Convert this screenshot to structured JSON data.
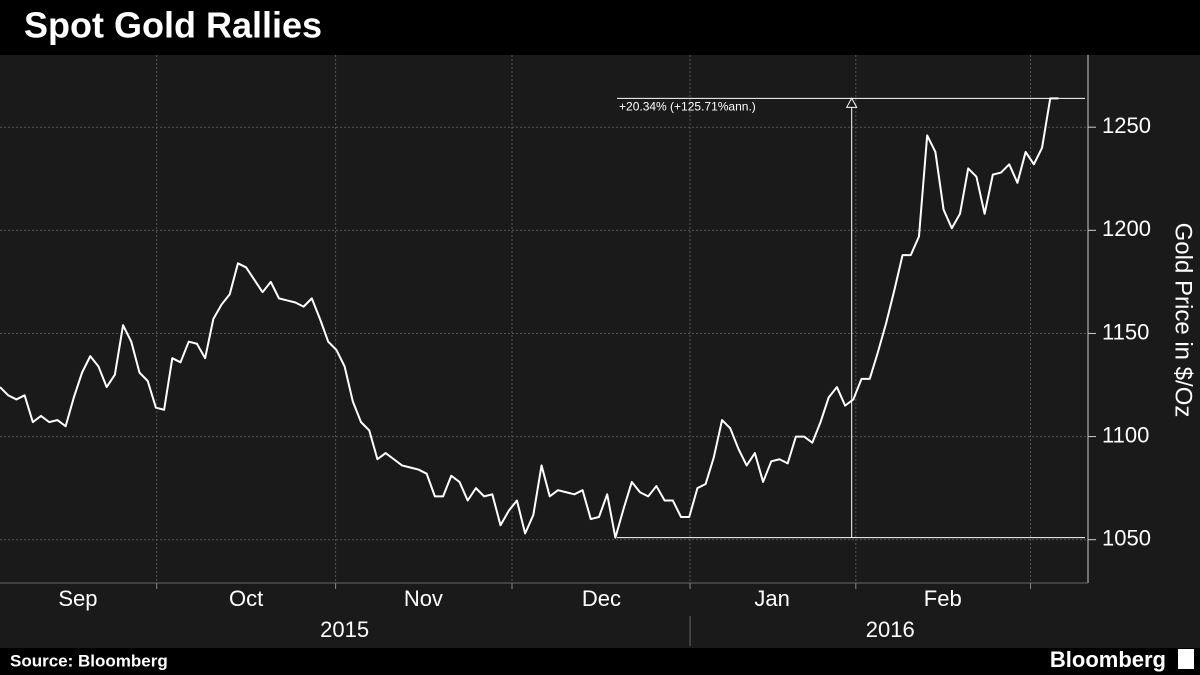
{
  "chart_data": {
    "type": "line",
    "title": "Spot Gold Rallies",
    "source": "Source: Bloomberg",
    "brand": "Bloomberg",
    "y_label": "Gold Price in $/Oz",
    "series": [
      {
        "name": "Spot Gold",
        "color": "#ffffff",
        "values": [
          1124,
          1120,
          1118,
          1120,
          1107,
          1110,
          1107,
          1108,
          1105,
          1119,
          1131,
          1139,
          1134,
          1124,
          1130,
          1154,
          1146,
          1131,
          1127,
          1114,
          1113,
          1138,
          1136,
          1146,
          1145,
          1138,
          1157,
          1164,
          1169,
          1184,
          1182,
          1176,
          1170,
          1175,
          1167,
          1166,
          1165,
          1163,
          1167,
          1157,
          1146,
          1142,
          1134,
          1117,
          1107,
          1103,
          1089,
          1092,
          1089,
          1086,
          1085,
          1084,
          1082,
          1071,
          1071,
          1081,
          1078,
          1069,
          1075,
          1071,
          1072,
          1057,
          1064,
          1069,
          1053,
          1062,
          1086,
          1071,
          1074,
          1073,
          1072,
          1074,
          1060,
          1061,
          1072,
          1051,
          1065,
          1078,
          1073,
          1071,
          1076,
          1069,
          1069,
          1061,
          1061,
          1075,
          1077,
          1090,
          1108,
          1104,
          1094,
          1086,
          1092,
          1078,
          1088,
          1089,
          1087,
          1100,
          1100,
          1097,
          1107,
          1119,
          1124,
          1115,
          1118,
          1128,
          1128,
          1141,
          1155,
          1171,
          1188,
          1188,
          1197,
          1246,
          1238,
          1210,
          1201,
          1208,
          1230,
          1226,
          1208,
          1227,
          1228,
          1232,
          1223,
          1238,
          1232,
          1240,
          1264,
          1264
        ]
      }
    ],
    "xlim": [
      0,
      132.6
    ],
    "ylim": [
      1029,
      1285
    ],
    "yticks": [
      1050,
      1100,
      1150,
      1200,
      1250
    ],
    "xticks": [
      {
        "value": 9.5,
        "label": "Sep"
      },
      {
        "value": 30,
        "label": "Oct"
      },
      {
        "value": 51.6,
        "label": "Nov"
      },
      {
        "value": 73.3,
        "label": "Dec"
      },
      {
        "value": 94.1,
        "label": "Jan"
      },
      {
        "value": 114.9,
        "label": "Feb"
      }
    ],
    "xgrid": [
      19.1,
      40.9,
      62.4,
      84.1,
      104.3,
      125.6
    ],
    "year_labels": [
      {
        "value": 42,
        "label": "2015"
      },
      {
        "value": 108.5,
        "label": "2016"
      }
    ],
    "year_divider": 84.1,
    "annotation": {
      "text": "+20.34% (+125.71%ann.)",
      "low": 1051,
      "high": 1264,
      "x_start": 75.2,
      "x_arrow": 103.8
    },
    "grid": true
  }
}
